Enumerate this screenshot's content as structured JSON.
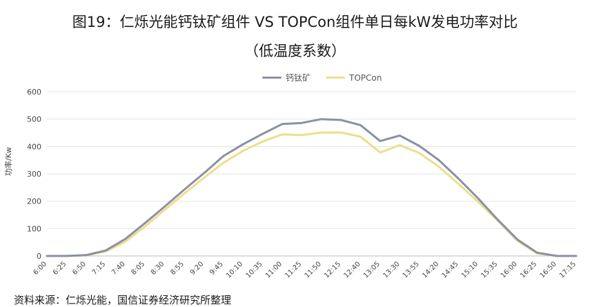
{
  "title_line1": "图19：仁烁光能钙钛矿组件 VS TOPCon组件单日每kW发电功率对比",
  "title_line2": "（低温度系数）",
  "source": "资料来源：仁烁光能，国信证券经济研究所整理",
  "chart_data": {
    "type": "line",
    "ylabel": "功率/Kw",
    "ylim": [
      0,
      600
    ],
    "yticks": [
      0,
      100,
      200,
      300,
      400,
      500,
      600
    ],
    "legend_position": "top-center",
    "grid": "horizontal",
    "categories": [
      "6:00",
      "6:25",
      "6:50",
      "7:15",
      "7:40",
      "8:05",
      "8:30",
      "8:55",
      "9:20",
      "9:45",
      "10:10",
      "10:35",
      "11:00",
      "11:25",
      "11:50",
      "12:15",
      "12:40",
      "13:05",
      "13:30",
      "13:55",
      "14:20",
      "14:45",
      "15:10",
      "15:35",
      "16:00",
      "16:25",
      "16:50",
      "17:15"
    ],
    "series": [
      {
        "name": "钙钛矿",
        "color": "#8a90a6",
        "values": [
          0,
          0,
          3,
          20,
          62,
          120,
          180,
          242,
          302,
          365,
          408,
          446,
          482,
          486,
          500,
          497,
          478,
          420,
          440,
          402,
          350,
          282,
          210,
          132,
          60,
          12,
          0,
          0
        ]
      },
      {
        "name": "TOPCon",
        "color": "#ecdf8a",
        "values": [
          0,
          0,
          2,
          16,
          52,
          108,
          168,
          228,
          285,
          340,
          384,
          418,
          444,
          442,
          451,
          451,
          436,
          378,
          405,
          376,
          326,
          263,
          198,
          128,
          55,
          9,
          0,
          0
        ]
      }
    ]
  }
}
